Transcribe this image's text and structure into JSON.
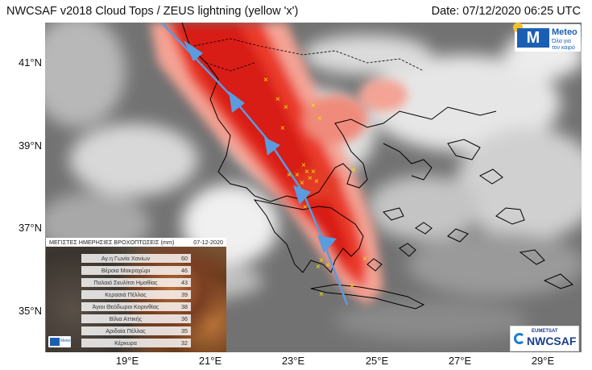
{
  "header": {
    "title": "NWCSAF v2018 Cloud Tops / ZEUS lightning (yellow 'x')",
    "date": "Date: 07/12/2020 06:25 UTC"
  },
  "map": {
    "lat_labels": [
      "41°N",
      "39°N",
      "37°N",
      "35°N"
    ],
    "lon_labels": [
      "19°E",
      "21°E",
      "23°E",
      "25°E",
      "27°E",
      "29°E"
    ],
    "lightning_marker": "x",
    "colors": {
      "lightning": "#f5e400",
      "front": "#5b9be0",
      "coastline": "#000000",
      "cloud_high": "#e8261a",
      "cloud_mid": "#f48a7a"
    }
  },
  "logos": {
    "meteo_name": "Meteo",
    "meteo_tagline": "Όλα για τον καιρό",
    "nwcsaf_org": "EUMETSAT",
    "nwcsaf_name": "NWCSAF"
  },
  "rain_table": {
    "title": "ΜΕΓΙΣΤΕΣ ΗΜΕΡΗΣΙΕΣ ΒΡΟΧΟΠΤΩΣΕΙΣ (mm)",
    "date": "07-12-2020",
    "rows": [
      {
        "station": "Αγ.η Γωνία Χανίων",
        "value": "60"
      },
      {
        "station": "Βέροια Μακροχώρι",
        "value": "46"
      },
      {
        "station": "Παλαιό Σκυλίτσι Ημαθίας",
        "value": "43"
      },
      {
        "station": "Κερασιά Πέλλας",
        "value": "39"
      },
      {
        "station": "Άγιοι Θεόδωροι Κορινθίας",
        "value": "38"
      },
      {
        "station": "Βίλια Αττικής",
        "value": "36"
      },
      {
        "station": "Αριδαία Πέλλας",
        "value": "35"
      },
      {
        "station": "Κέρκυρα",
        "value": "32"
      }
    ]
  }
}
